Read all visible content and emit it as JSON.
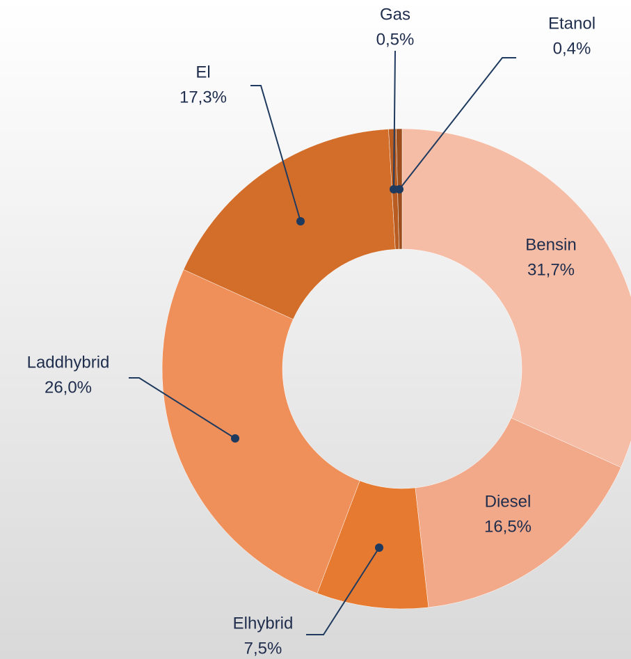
{
  "chart_data": {
    "type": "pie",
    "categories": [
      "Bensin",
      "Diesel",
      "Elhybrid",
      "Laddhybrid",
      "El",
      "Gas",
      "Etanol"
    ],
    "values": [
      31.7,
      16.5,
      7.5,
      26.0,
      17.3,
      0.5,
      0.4
    ],
    "value_labels": [
      "31,7%",
      "16,5%",
      "7,5%",
      "26,0%",
      "17,3%",
      "0,5%",
      "0,4%"
    ],
    "colors": [
      "#f5bca6",
      "#f2a98a",
      "#e57a30",
      "#ef8f5a",
      "#d26e2a",
      "#b85c22",
      "#9c4f1c"
    ]
  }
}
